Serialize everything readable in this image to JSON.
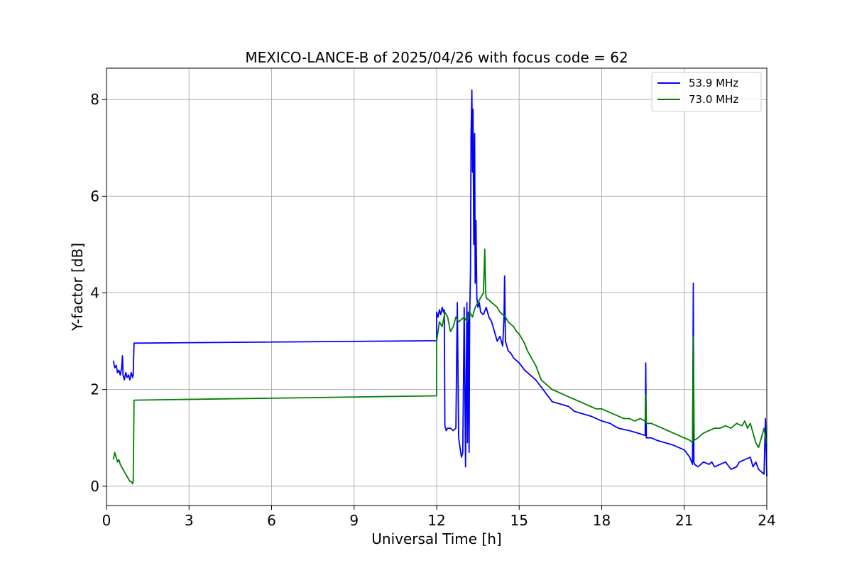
{
  "chart_data": {
    "type": "line",
    "title": "MEXICO-LANCE-B of 2025/04/26 with focus code = 62",
    "xlabel": "Universal Time [h]",
    "ylabel": "Y-factor [dB]",
    "xlim": [
      0,
      24
    ],
    "ylim": [
      -0.4,
      8.65
    ],
    "xticks": [
      "0",
      "3",
      "6",
      "9",
      "12",
      "15",
      "18",
      "21",
      "24"
    ],
    "xtick_values": [
      0,
      3,
      6,
      9,
      12,
      15,
      18,
      21,
      24
    ],
    "yticks": [
      "0",
      "2",
      "4",
      "6",
      "8"
    ],
    "ytick_values": [
      0,
      2,
      4,
      6,
      8
    ],
    "grid": true,
    "legend_position": "top-right",
    "series": [
      {
        "name": "53.9 MHz",
        "color": "#0000ff",
        "x": [
          0.25,
          0.3,
          0.35,
          0.4,
          0.45,
          0.5,
          0.55,
          0.58,
          0.6,
          0.65,
          0.7,
          0.75,
          0.8,
          0.85,
          0.9,
          0.95,
          0.97,
          1.0,
          12.0,
          12.0,
          12.05,
          12.1,
          12.15,
          12.2,
          12.25,
          12.28,
          12.3,
          12.35,
          12.4,
          12.5,
          12.6,
          12.7,
          12.75,
          12.8,
          12.85,
          12.9,
          12.95,
          13.0,
          13.05,
          13.1,
          13.12,
          13.15,
          13.18,
          13.2,
          13.23,
          13.25,
          13.28,
          13.3,
          13.32,
          13.35,
          13.38,
          13.4,
          13.43,
          13.46,
          13.5,
          13.55,
          13.6,
          13.7,
          13.8,
          13.9,
          14.0,
          14.1,
          14.2,
          14.3,
          14.4,
          14.45,
          14.47,
          14.5,
          14.6,
          14.7,
          14.8,
          14.9,
          15.0,
          15.2,
          15.4,
          15.6,
          15.8,
          16.0,
          16.2,
          16.5,
          16.8,
          17.0,
          17.3,
          17.6,
          18.0,
          18.3,
          18.6,
          19.0,
          19.3,
          19.58,
          19.6,
          19.62,
          19.8,
          20.0,
          20.3,
          20.6,
          20.8,
          21.0,
          21.2,
          21.3,
          21.33,
          21.35,
          21.38,
          21.5,
          21.7,
          21.9,
          22.0,
          22.1,
          22.3,
          22.5,
          22.7,
          22.9,
          23.0,
          23.2,
          23.4,
          23.5,
          23.6,
          23.7,
          23.8,
          23.9,
          23.95,
          24.0
        ],
        "y": [
          2.6,
          2.45,
          2.5,
          2.35,
          2.4,
          2.3,
          2.45,
          2.7,
          2.3,
          2.2,
          2.35,
          2.25,
          2.3,
          2.2,
          2.35,
          2.25,
          2.3,
          2.96,
          3.01,
          3.6,
          3.5,
          3.65,
          3.55,
          3.7,
          3.6,
          3.65,
          1.25,
          1.15,
          1.2,
          1.2,
          1.15,
          1.2,
          3.8,
          1.0,
          0.8,
          0.6,
          0.7,
          3.7,
          0.4,
          3.8,
          0.9,
          3.6,
          0.7,
          3.5,
          4.5,
          7.2,
          8.2,
          6.5,
          7.8,
          5.0,
          7.3,
          4.2,
          5.5,
          3.9,
          3.7,
          3.8,
          3.6,
          3.55,
          3.7,
          3.5,
          3.4,
          3.2,
          3.0,
          3.1,
          2.9,
          3.5,
          4.35,
          3.0,
          2.8,
          2.75,
          2.65,
          2.6,
          2.55,
          2.4,
          2.3,
          2.2,
          2.05,
          1.9,
          1.75,
          1.7,
          1.65,
          1.55,
          1.5,
          1.45,
          1.35,
          1.3,
          1.2,
          1.15,
          1.1,
          1.05,
          2.55,
          1.0,
          1.0,
          0.95,
          0.9,
          0.85,
          0.8,
          0.75,
          0.6,
          0.45,
          4.2,
          0.5,
          0.45,
          0.4,
          0.5,
          0.45,
          0.5,
          0.4,
          0.45,
          0.5,
          0.35,
          0.4,
          0.5,
          0.55,
          0.6,
          0.4,
          0.5,
          0.35,
          0.3,
          0.25,
          1.4,
          0.2
        ]
      },
      {
        "name": "73.0 MHz",
        "color": "#008000",
        "x": [
          0.25,
          0.3,
          0.35,
          0.4,
          0.45,
          0.5,
          0.55,
          0.6,
          0.65,
          0.7,
          0.75,
          0.8,
          0.85,
          0.9,
          0.95,
          0.97,
          1.0,
          12.0,
          12.0,
          12.05,
          12.1,
          12.2,
          12.3,
          12.4,
          12.5,
          12.6,
          12.7,
          12.8,
          12.9,
          13.0,
          13.1,
          13.2,
          13.3,
          13.4,
          13.5,
          13.6,
          13.7,
          13.75,
          13.78,
          13.8,
          13.9,
          14.0,
          14.1,
          14.2,
          14.3,
          14.4,
          14.5,
          14.6,
          14.7,
          14.8,
          14.9,
          15.0,
          15.1,
          15.2,
          15.3,
          15.4,
          15.5,
          15.6,
          15.7,
          15.8,
          15.9,
          16.0,
          16.2,
          16.4,
          16.6,
          16.8,
          17.0,
          17.2,
          17.4,
          17.6,
          17.8,
          18.0,
          18.2,
          18.4,
          18.6,
          18.8,
          19.0,
          19.2,
          19.4,
          19.58,
          19.6,
          19.62,
          19.8,
          20.0,
          20.2,
          20.4,
          20.6,
          20.8,
          21.0,
          21.2,
          21.3,
          21.33,
          21.36,
          21.5,
          21.7,
          21.9,
          22.1,
          22.3,
          22.5,
          22.7,
          22.9,
          23.1,
          23.2,
          23.3,
          23.4,
          23.5,
          23.6,
          23.7,
          23.8,
          23.9,
          24.0
        ],
        "y": [
          0.55,
          0.7,
          0.6,
          0.5,
          0.55,
          0.45,
          0.4,
          0.35,
          0.3,
          0.25,
          0.2,
          0.15,
          0.1,
          0.1,
          0.05,
          0.1,
          1.78,
          1.87,
          3.0,
          3.2,
          3.4,
          3.3,
          3.6,
          3.5,
          3.2,
          3.3,
          3.5,
          3.4,
          3.45,
          3.5,
          3.4,
          3.6,
          3.5,
          3.7,
          3.8,
          3.9,
          4.0,
          4.9,
          4.0,
          3.9,
          3.85,
          3.8,
          3.75,
          3.7,
          3.6,
          3.55,
          3.5,
          3.4,
          3.35,
          3.3,
          3.2,
          3.15,
          3.05,
          2.95,
          2.8,
          2.7,
          2.6,
          2.5,
          2.35,
          2.2,
          2.15,
          2.1,
          2.0,
          1.95,
          1.9,
          1.85,
          1.8,
          1.75,
          1.7,
          1.65,
          1.6,
          1.6,
          1.55,
          1.5,
          1.45,
          1.4,
          1.4,
          1.35,
          1.4,
          1.35,
          1.9,
          1.3,
          1.3,
          1.25,
          1.2,
          1.15,
          1.1,
          1.05,
          1.0,
          0.95,
          0.9,
          3.1,
          0.95,
          1.0,
          1.1,
          1.15,
          1.2,
          1.2,
          1.25,
          1.2,
          1.3,
          1.25,
          1.35,
          1.2,
          1.3,
          1.1,
          0.9,
          0.8,
          1.0,
          1.2,
          0.85
        ]
      }
    ]
  }
}
